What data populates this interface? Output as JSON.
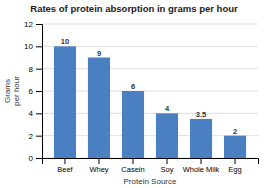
{
  "chart_data": {
    "type": "bar",
    "title": "Rates of protein absorption in grams per hour",
    "xlabel": "Protein Source",
    "ylabel": "Grams\nper hour",
    "categories": [
      "Beef",
      "Whey",
      "Casein",
      "Soy",
      "Whole Milk",
      "Egg"
    ],
    "values": [
      10,
      9,
      6,
      4,
      3.5,
      2
    ],
    "color": "#4a7fc1",
    "data_labels": true,
    "ylim": [
      0,
      12
    ],
    "yticks": [
      0,
      2,
      4,
      6,
      8,
      10,
      12
    ],
    "grid": true
  }
}
